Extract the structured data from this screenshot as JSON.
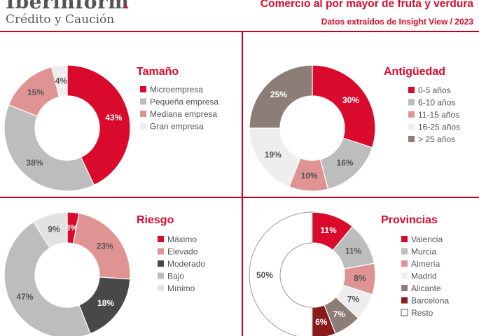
{
  "brand": {
    "name": "Iberinform",
    "tagline": "Crédito y Caución"
  },
  "header": {
    "title": "Comercio al por mayor de fruta y verdura",
    "subtitle": "Datos extraídos de Insight View / 2023"
  },
  "colors": {
    "accent": "#d90a2c",
    "divider": "#c1001f"
  },
  "chart_data": [
    {
      "type": "pie",
      "title": "Tamaño",
      "categories": [
        "Microempresa",
        "Pequeña empresa",
        "Mediana empresa",
        "Gran empresa"
      ],
      "values": [
        43,
        38,
        15,
        4
      ],
      "labels": [
        "43%",
        "38%",
        "15%",
        "4%"
      ],
      "colors": [
        "#d90a2c",
        "#bdbdbd",
        "#e09393",
        "#eeeeee"
      ],
      "legend_position": "right"
    },
    {
      "type": "pie",
      "title": "Antigüedad",
      "categories": [
        "0-5 años",
        "6-10 años",
        "11-15 años",
        "16-25 años",
        "> 25 años"
      ],
      "values": [
        30,
        16,
        10,
        19,
        25
      ],
      "labels": [
        "30%",
        "16%",
        "10%",
        "19%",
        "25%"
      ],
      "colors": [
        "#d90a2c",
        "#bdbdbd",
        "#e09393",
        "#eeeeee",
        "#8c7e77"
      ],
      "legend_position": "right"
    },
    {
      "type": "pie",
      "title": "Riesgo",
      "categories": [
        "Máximo",
        "Elevado",
        "Moderado",
        "Bajo",
        "Mínimo"
      ],
      "values": [
        3,
        23,
        18,
        47,
        9
      ],
      "labels": [
        "3%",
        "23%",
        "18%",
        "47%",
        "9%"
      ],
      "colors": [
        "#d90a2c",
        "#e09393",
        "#484848",
        "#bdbdbd",
        "#e2e2e2"
      ],
      "legend_position": "right"
    },
    {
      "type": "pie",
      "title": "Provincias",
      "categories": [
        "Valencia",
        "Murcia",
        "Almería",
        "Madrid",
        "Alicante",
        "Barcelona",
        "Resto"
      ],
      "values": [
        11,
        11,
        8,
        7,
        7,
        6,
        50
      ],
      "labels": [
        "11%",
        "11%",
        "8%",
        "7%",
        "7%",
        "6%",
        "50%"
      ],
      "colors": [
        "#d90a2c",
        "#bdbdbd",
        "#e09393",
        "#eeeeee",
        "#8c7e77",
        "#8b1a1a",
        "#ffffff"
      ],
      "legend_position": "right"
    }
  ]
}
